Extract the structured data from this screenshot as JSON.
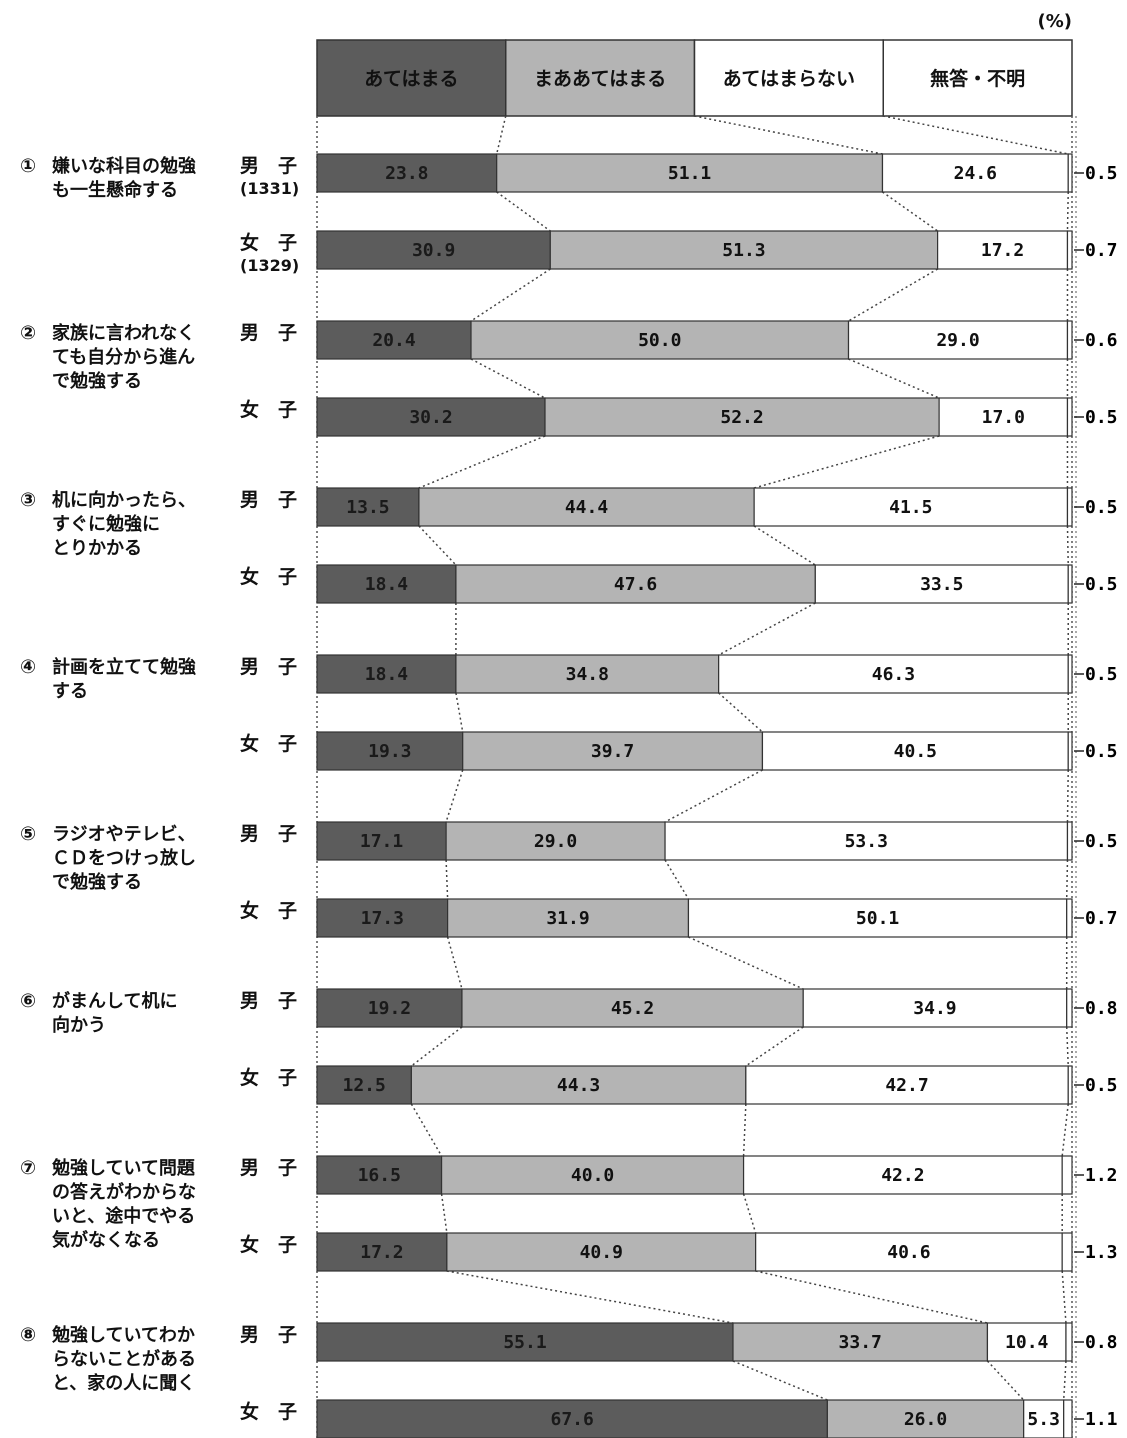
{
  "unit_label": "(%)",
  "chart_data": {
    "type": "bar",
    "stacked": true,
    "orientation": "horizontal",
    "legend": {
      "placement": "top",
      "entries": [
        "あてはまる",
        "まああてはまる",
        "あてはまらない",
        "無答・不明"
      ]
    },
    "colors": [
      "#5c5c5c",
      "#b4b4b4",
      "#ffffff",
      "#ffffff"
    ],
    "items": [
      {
        "num": "①",
        "question": [
          "嫌いな科目の勉強",
          "も一生懸命する"
        ],
        "rows": [
          {
            "group": "男　子",
            "n": "(1331)",
            "values": [
              23.8,
              51.1,
              24.6,
              0.5
            ],
            "labels": [
              "23.8",
              "51.1",
              "24.6",
              "0.5"
            ]
          },
          {
            "group": "女　子",
            "n": "(1329)",
            "values": [
              30.9,
              51.3,
              17.2,
              0.7
            ],
            "labels": [
              "30.9",
              "51.3",
              "17.2",
              "0.7"
            ]
          }
        ]
      },
      {
        "num": "②",
        "question": [
          "家族に言われなく",
          "ても自分から進ん",
          "で勉強する"
        ],
        "rows": [
          {
            "group": "男　子",
            "n": "",
            "values": [
              20.4,
              50.0,
              29.0,
              0.6
            ],
            "labels": [
              "20.4",
              "50.0",
              "29.0",
              "0.6"
            ]
          },
          {
            "group": "女　子",
            "n": "",
            "values": [
              30.2,
              52.2,
              17.0,
              0.5
            ],
            "labels": [
              "30.2",
              "52.2",
              "17.0",
              "0.5"
            ]
          }
        ]
      },
      {
        "num": "③",
        "question": [
          "机に向かったら、",
          "すぐに勉強に",
          "とりかかる"
        ],
        "rows": [
          {
            "group": "男　子",
            "n": "",
            "values": [
              13.5,
              44.4,
              41.5,
              0.5
            ],
            "labels": [
              "13.5",
              "44.4",
              "41.5",
              "0.5"
            ]
          },
          {
            "group": "女　子",
            "n": "",
            "values": [
              18.4,
              47.6,
              33.5,
              0.5
            ],
            "labels": [
              "18.4",
              "47.6",
              "33.5",
              "0.5"
            ]
          }
        ]
      },
      {
        "num": "④",
        "question": [
          "計画を立てて勉強",
          "する"
        ],
        "rows": [
          {
            "group": "男　子",
            "n": "",
            "values": [
              18.4,
              34.8,
              46.3,
              0.5
            ],
            "labels": [
              "18.4",
              "34.8",
              "46.3",
              "0.5"
            ]
          },
          {
            "group": "女　子",
            "n": "",
            "values": [
              19.3,
              39.7,
              40.5,
              0.5
            ],
            "labels": [
              "19.3",
              "39.7",
              "40.5",
              "0.5"
            ]
          }
        ]
      },
      {
        "num": "⑤",
        "question": [
          "ラジオやテレビ、",
          "ＣＤをつけっ放し",
          "で勉強する"
        ],
        "rows": [
          {
            "group": "男　子",
            "n": "",
            "values": [
              17.1,
              29.0,
              53.3,
              0.5
            ],
            "labels": [
              "17.1",
              "29.0",
              "53.3",
              "0.5"
            ]
          },
          {
            "group": "女　子",
            "n": "",
            "values": [
              17.3,
              31.9,
              50.1,
              0.7
            ],
            "labels": [
              "17.3",
              "31.9",
              "50.1",
              "0.7"
            ]
          }
        ]
      },
      {
        "num": "⑥",
        "question": [
          "がまんして机に",
          "向かう"
        ],
        "rows": [
          {
            "group": "男　子",
            "n": "",
            "values": [
              19.2,
              45.2,
              34.9,
              0.8
            ],
            "labels": [
              "19.2",
              "45.2",
              "34.9",
              "0.8"
            ]
          },
          {
            "group": "女　子",
            "n": "",
            "values": [
              12.5,
              44.3,
              42.7,
              0.5
            ],
            "labels": [
              "12.5",
              "44.3",
              "42.7",
              "0.5"
            ]
          }
        ]
      },
      {
        "num": "⑦",
        "question": [
          "勉強していて問題",
          "の答えがわからな",
          "いと、途中でやる",
          "気がなくなる"
        ],
        "rows": [
          {
            "group": "男　子",
            "n": "",
            "values": [
              16.5,
              40.0,
              42.2,
              1.2
            ],
            "labels": [
              "16.5",
              "40.0",
              "42.2",
              "1.2"
            ]
          },
          {
            "group": "女　子",
            "n": "",
            "values": [
              17.2,
              40.9,
              40.6,
              1.3
            ],
            "labels": [
              "17.2",
              "40.9",
              "40.6",
              "1.3"
            ]
          }
        ]
      },
      {
        "num": "⑧",
        "question": [
          "勉強していてわか",
          "らないことがある",
          "と、家の人に聞く"
        ],
        "rows": [
          {
            "group": "男　子",
            "n": "",
            "values": [
              55.1,
              33.7,
              10.4,
              0.8
            ],
            "labels": [
              "55.1",
              "33.7",
              "10.4",
              "0.8"
            ]
          },
          {
            "group": "女　子",
            "n": "",
            "values": [
              67.6,
              26.0,
              5.3,
              1.1
            ],
            "labels": [
              "67.6",
              "26.0",
              "5.3",
              "1.1"
            ]
          }
        ]
      }
    ]
  }
}
